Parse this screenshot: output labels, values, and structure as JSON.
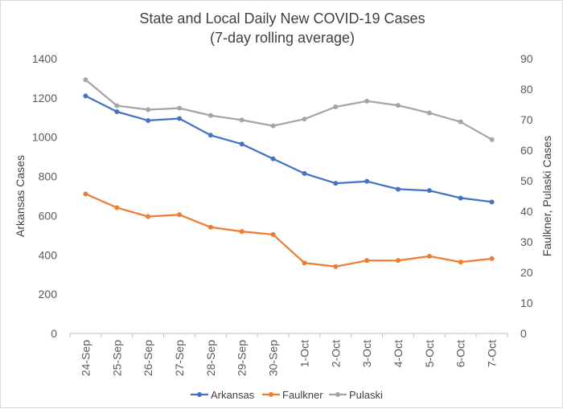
{
  "chart_data": {
    "type": "line",
    "title": "State and Local Daily New COVID-19 Cases",
    "subtitle": "(7-day rolling average)",
    "xlabel": "",
    "ylabel": "Arkansas Cases",
    "y2label": "Faulkner, Pulaski Cases",
    "categories": [
      "24-Sep",
      "25-Sep",
      "26-Sep",
      "27-Sep",
      "28-Sep",
      "29-Sep",
      "30-Sep",
      "1-Oct",
      "2-Oct",
      "3-Oct",
      "4-Oct",
      "5-Oct",
      "6-Oct",
      "7-Oct"
    ],
    "ylim": [
      0,
      1400
    ],
    "y2lim": [
      0,
      90
    ],
    "yticks": [
      "0",
      "200",
      "400",
      "600",
      "800",
      "1000",
      "1200",
      "1400"
    ],
    "y2ticks": [
      "0",
      "10",
      "20",
      "30",
      "40",
      "50",
      "60",
      "70",
      "80",
      "90"
    ],
    "grid": false,
    "legend_position": "bottom",
    "series": [
      {
        "name": "Arkansas",
        "axis": "left",
        "color": "#4472C4",
        "values": [
          1210,
          1130,
          1085,
          1095,
          1010,
          965,
          890,
          815,
          765,
          775,
          735,
          728,
          690,
          670
        ]
      },
      {
        "name": "Faulkner",
        "axis": "right",
        "color": "#ED7D31",
        "values": [
          45.7,
          41.2,
          38.3,
          38.9,
          34.8,
          33.4,
          32.4,
          23.1,
          21.9,
          23.9,
          23.9,
          25.3,
          23.4,
          24.5
        ]
      },
      {
        "name": "Pulaski",
        "axis": "right",
        "color": "#A5A5A5",
        "values": [
          83.1,
          74.6,
          73.3,
          73.8,
          71.4,
          69.9,
          68.0,
          70.2,
          74.2,
          76.1,
          74.7,
          72.2,
          69.3,
          63.5
        ]
      }
    ]
  }
}
